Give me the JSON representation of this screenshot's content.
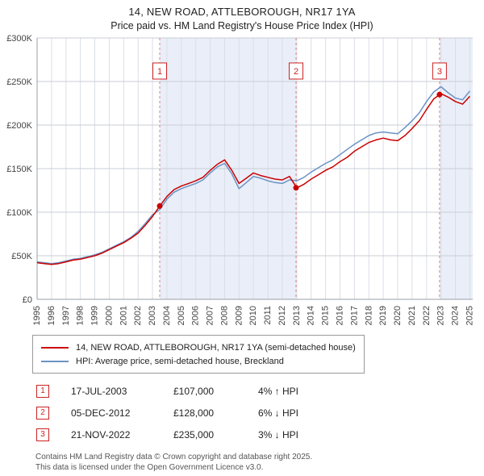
{
  "header": {
    "title": "14, NEW ROAD, ATTLEBOROUGH, NR17 1YA",
    "subtitle": "Price paid vs. HM Land Registry's House Price Index (HPI)"
  },
  "chart_data": {
    "type": "line",
    "title": "14, NEW ROAD, ATTLEBOROUGH, NR17 1YA — Price paid vs. HPI",
    "x_range": [
      1995,
      2025.2
    ],
    "ylim": [
      0,
      300000
    ],
    "grid": true,
    "x_ticks": [
      1995,
      1996,
      1997,
      1998,
      1999,
      2000,
      2001,
      2002,
      2003,
      2004,
      2005,
      2006,
      2007,
      2008,
      2009,
      2010,
      2011,
      2012,
      2013,
      2014,
      2015,
      2016,
      2017,
      2018,
      2019,
      2020,
      2021,
      2022,
      2023,
      2024,
      2025
    ],
    "y_ticks": [
      {
        "label": "£0",
        "value": 0
      },
      {
        "label": "£50K",
        "value": 50000
      },
      {
        "label": "£100K",
        "value": 100000
      },
      {
        "label": "£150K",
        "value": 150000
      },
      {
        "label": "£200K",
        "value": 200000
      },
      {
        "label": "£250K",
        "value": 250000
      },
      {
        "label": "£300K",
        "value": 300000
      }
    ],
    "shade_color": "#e9eef8",
    "shaded_regions": [
      [
        2003.5,
        2012.95
      ],
      [
        2022.9,
        2025.2
      ]
    ],
    "marker_label_y": 262000,
    "series": [
      {
        "name": "14, NEW ROAD, ATTLEBOROUGH, NR17 1YA (semi-detached house)",
        "color": "#cc0000",
        "x": [
          1995,
          1995.5,
          1996,
          1996.5,
          1997,
          1997.5,
          1998,
          1998.5,
          1999,
          1999.5,
          2000,
          2000.5,
          2001,
          2001.5,
          2002,
          2002.5,
          2003,
          2003.5,
          2004,
          2004.5,
          2005,
          2005.5,
          2006,
          2006.5,
          2007,
          2007.5,
          2008,
          2008.5,
          2009,
          2009.5,
          2010,
          2010.5,
          2011,
          2011.5,
          2012,
          2012.5,
          2013,
          2013.5,
          2014,
          2014.5,
          2015,
          2015.5,
          2016,
          2016.5,
          2017,
          2017.5,
          2018,
          2018.5,
          2019,
          2019.5,
          2020,
          2020.5,
          2021,
          2021.5,
          2022,
          2022.5,
          2023,
          2023.5,
          2024,
          2024.5,
          2025
        ],
        "values": [
          42000,
          41000,
          40000,
          41000,
          43000,
          45000,
          46000,
          48000,
          50000,
          53000,
          57000,
          61000,
          65000,
          70000,
          76000,
          85000,
          95000,
          107000,
          118000,
          126000,
          130000,
          133000,
          136000,
          140000,
          148000,
          155000,
          160000,
          148000,
          133000,
          139000,
          145000,
          142000,
          140000,
          138000,
          137000,
          141000,
          128000,
          132000,
          138000,
          143000,
          148000,
          152000,
          158000,
          163000,
          170000,
          175000,
          180000,
          183000,
          185000,
          183000,
          182000,
          188000,
          196000,
          205000,
          218000,
          230000,
          236000,
          232000,
          227000,
          224000,
          233000
        ]
      },
      {
        "name": "HPI: Average price, semi-detached house, Breckland",
        "color": "#6b93c4",
        "x": [
          1995,
          1995.5,
          1996,
          1996.5,
          1997,
          1997.5,
          1998,
          1998.5,
          1999,
          1999.5,
          2000,
          2000.5,
          2001,
          2001.5,
          2002,
          2002.5,
          2003,
          2003.5,
          2004,
          2004.5,
          2005,
          2005.5,
          2006,
          2006.5,
          2007,
          2007.5,
          2008,
          2008.5,
          2009,
          2009.5,
          2010,
          2010.5,
          2011,
          2011.5,
          2012,
          2012.5,
          2013,
          2013.5,
          2014,
          2014.5,
          2015,
          2015.5,
          2016,
          2016.5,
          2017,
          2017.5,
          2018,
          2018.5,
          2019,
          2019.5,
          2020,
          2020.5,
          2021,
          2021.5,
          2022,
          2022.5,
          2023,
          2023.5,
          2024,
          2024.5,
          2025
        ],
        "values": [
          43000,
          42000,
          41000,
          42000,
          44000,
          46000,
          47000,
          49000,
          51000,
          54000,
          58000,
          62000,
          66000,
          71000,
          78000,
          87000,
          97000,
          103000,
          115000,
          123000,
          127000,
          130000,
          133000,
          137000,
          145000,
          152000,
          156000,
          144000,
          127000,
          134000,
          141000,
          139000,
          136000,
          134000,
          133000,
          137000,
          136000,
          140000,
          146000,
          151000,
          156000,
          160000,
          166000,
          172000,
          178000,
          183000,
          188000,
          191000,
          192000,
          191000,
          190000,
          197000,
          205000,
          214000,
          227000,
          238000,
          244000,
          237000,
          231000,
          229000,
          239000
        ]
      }
    ],
    "markers": [
      {
        "label": "1",
        "x": 2003.5,
        "value": 107000
      },
      {
        "label": "2",
        "x": 2012.95,
        "value": 128000
      },
      {
        "label": "3",
        "x": 2022.9,
        "value": 235000
      }
    ],
    "legend_position": "bottom"
  },
  "legend": [
    {
      "label": "14, NEW ROAD, ATTLEBOROUGH, NR17 1YA (semi-detached house)",
      "color": "#cc0000"
    },
    {
      "label": "HPI: Average price, semi-detached house, Breckland",
      "color": "#6b93c4"
    }
  ],
  "transactions": [
    {
      "num": "1",
      "date": "17-JUL-2003",
      "price": "£107,000",
      "hpi": "4% ↑ HPI"
    },
    {
      "num": "2",
      "date": "05-DEC-2012",
      "price": "£128,000",
      "hpi": "6% ↓ HPI"
    },
    {
      "num": "3",
      "date": "21-NOV-2022",
      "price": "£235,000",
      "hpi": "3% ↓ HPI"
    }
  ],
  "footer": {
    "line1": "Contains HM Land Registry data © Crown copyright and database right 2025.",
    "line2": "This data is licensed under the Open Government Licence v3.0."
  }
}
